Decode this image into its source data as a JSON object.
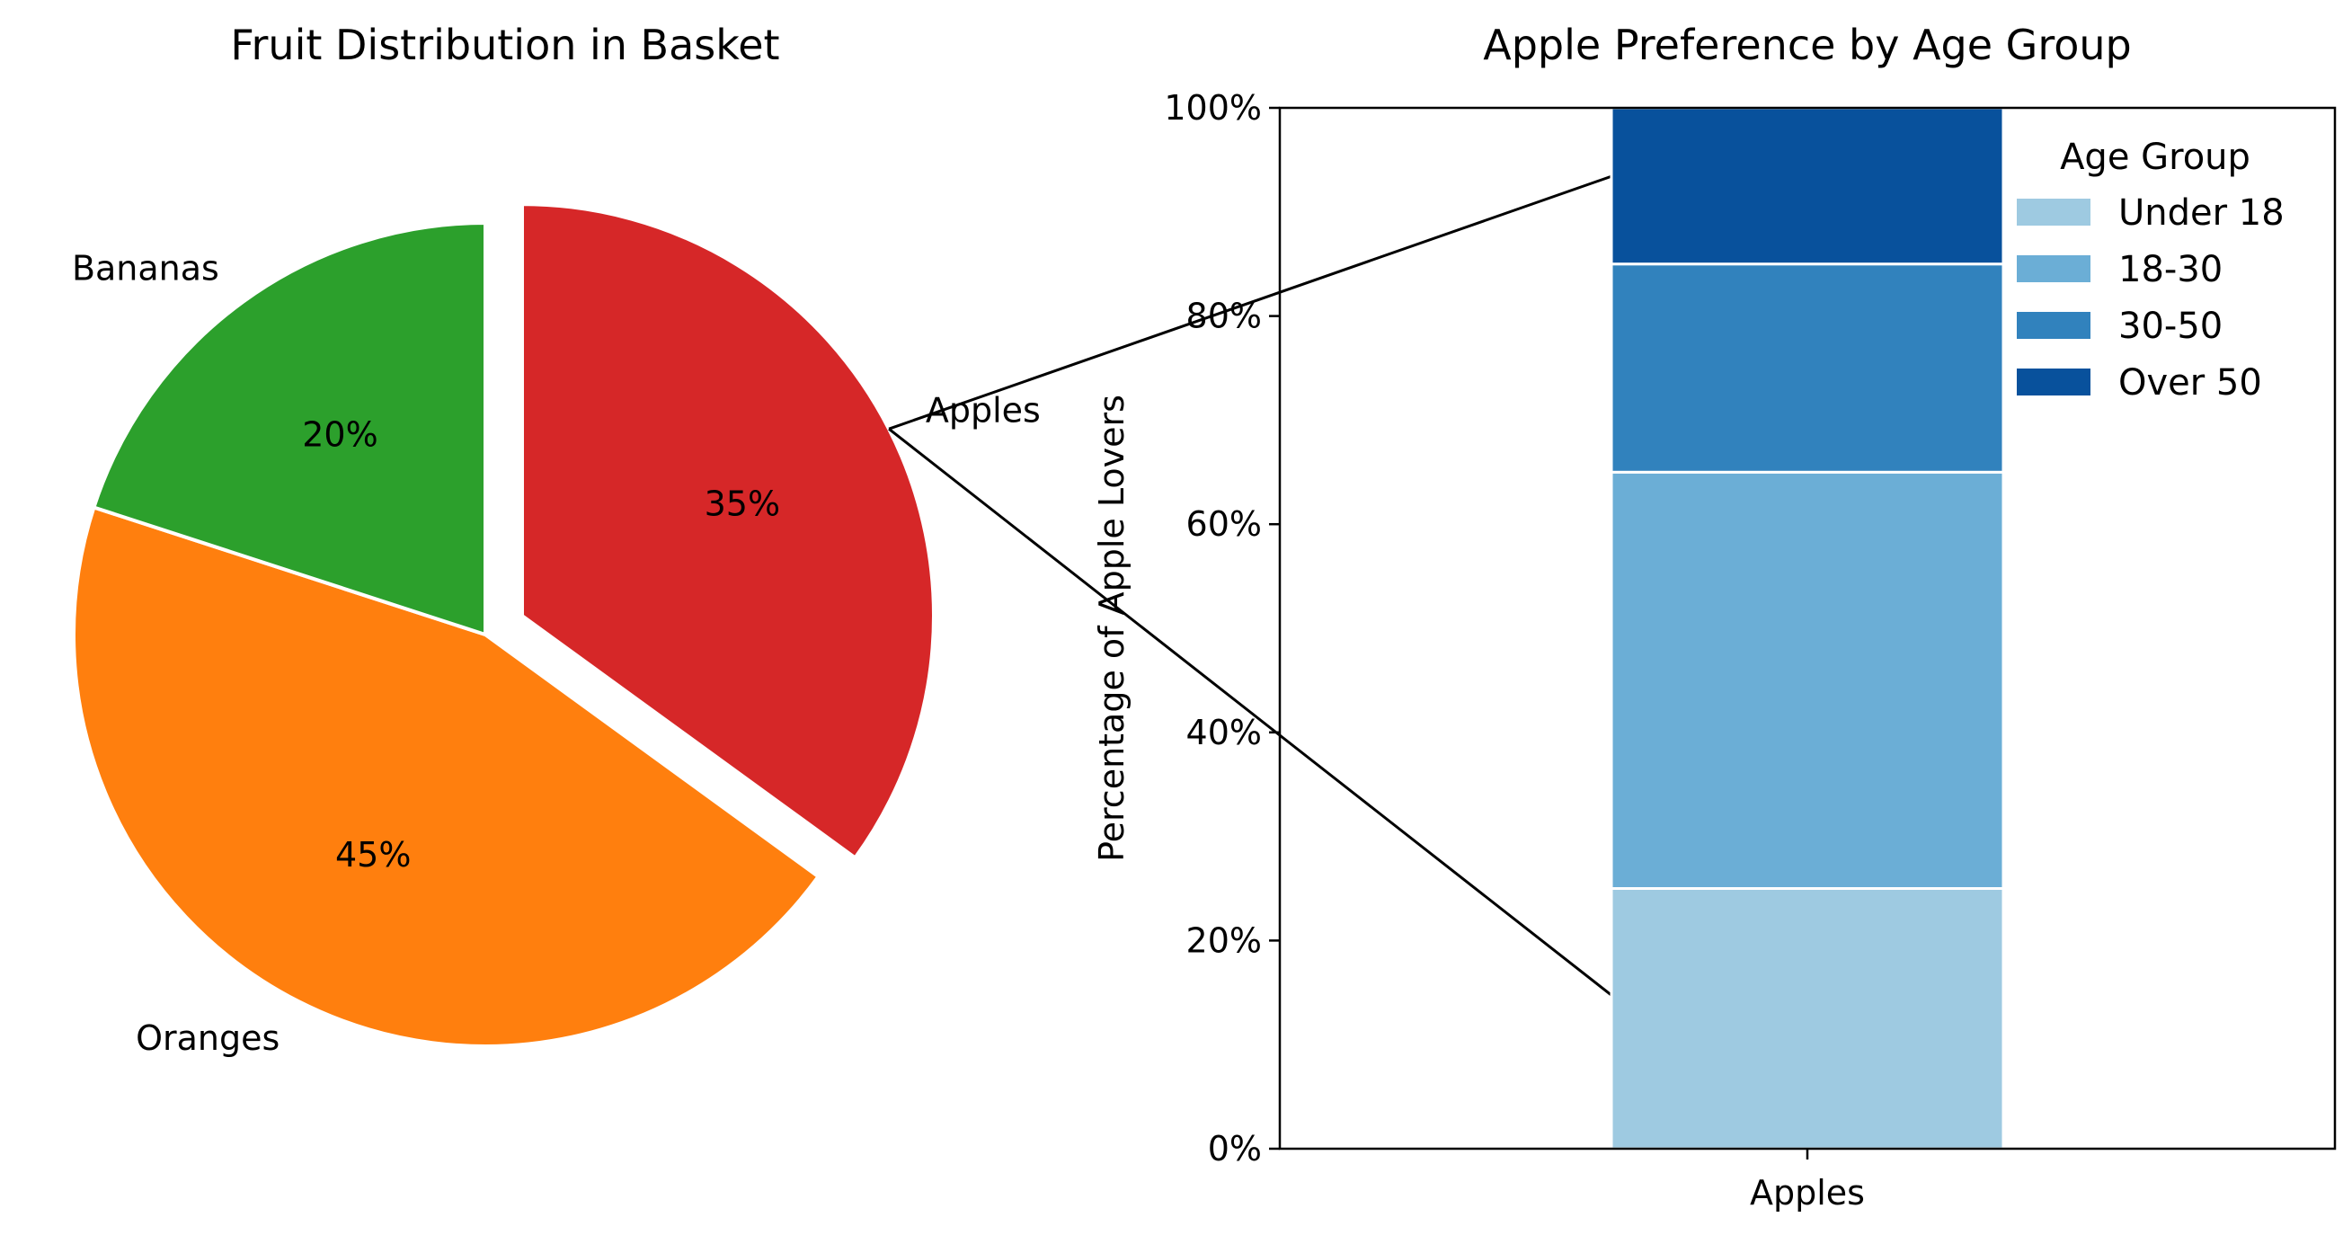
{
  "chart_data": [
    {
      "type": "pie",
      "title": "Fruit Distribution in Basket",
      "slices": [
        {
          "label": "Apples",
          "value": 35,
          "pct_label": "35%",
          "color": "#d62728",
          "exploded": true
        },
        {
          "label": "Oranges",
          "value": 45,
          "pct_label": "45%",
          "color": "#ff7f0e",
          "exploded": false
        },
        {
          "label": "Bananas",
          "value": 20,
          "pct_label": "20%",
          "color": "#2ca02c",
          "exploded": false
        }
      ]
    },
    {
      "type": "bar",
      "stacked": true,
      "title": "Apple Preference by Age Group",
      "categories": [
        "Apples"
      ],
      "ylabel": "Percentage of Apple Lovers",
      "xlabel": "",
      "ylim": [
        0,
        1
      ],
      "yticks": [
        0,
        0.2,
        0.4,
        0.6,
        0.8,
        1.0
      ],
      "yticklabels": [
        "0%",
        "20%",
        "40%",
        "60%",
        "80%",
        "100%"
      ],
      "series": [
        {
          "name": "Under 18",
          "values": [
            0.25
          ],
          "color": "#9ecae1"
        },
        {
          "name": "18-30",
          "values": [
            0.4
          ],
          "color": "#6baed6"
        },
        {
          "name": "30-50",
          "values": [
            0.2
          ],
          "color": "#3182bd"
        },
        {
          "name": "Over 50",
          "values": [
            0.15
          ],
          "color": "#08519c"
        }
      ],
      "legend": {
        "title": "Age Group",
        "placement": "upper-right"
      }
    }
  ]
}
